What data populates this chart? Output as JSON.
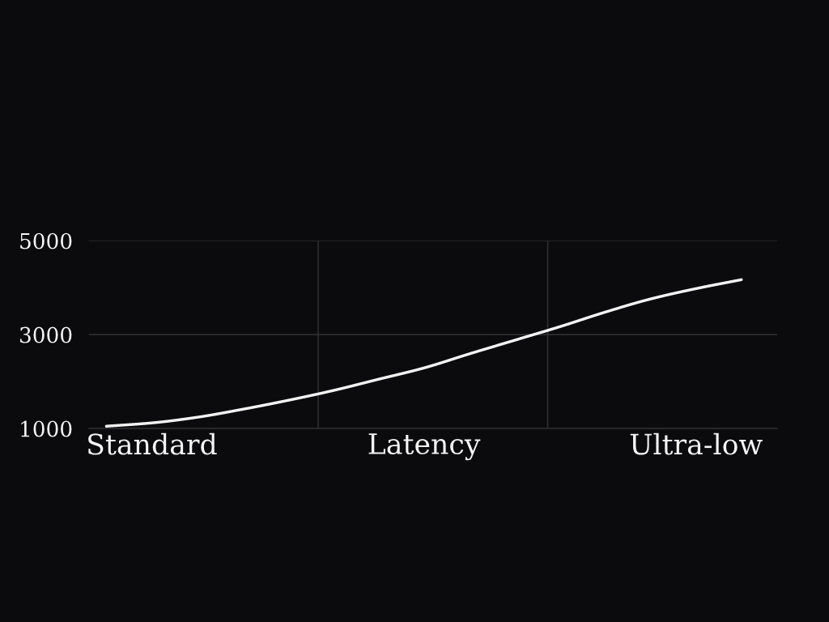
{
  "chart_data": {
    "type": "line",
    "categories": [
      null,
      "Standard",
      null,
      null,
      null,
      null,
      null,
      "Latency",
      null,
      null,
      null,
      null,
      null,
      "Ultra-low",
      null
    ],
    "series": [
      {
        "color": "#f2f2f2",
        "values": [
          1050,
          1120,
          1240,
          1410,
          1600,
          1810,
          2050,
          2290,
          2590,
          2880,
          3170,
          3480,
          3760,
          3980,
          4170
        ]
      }
    ],
    "ylim": [
      1000,
      5000
    ],
    "yticks": [
      1000,
      3000,
      5000
    ],
    "grid": true,
    "marker": "none",
    "line_style": "solid",
    "legend": false
  }
}
